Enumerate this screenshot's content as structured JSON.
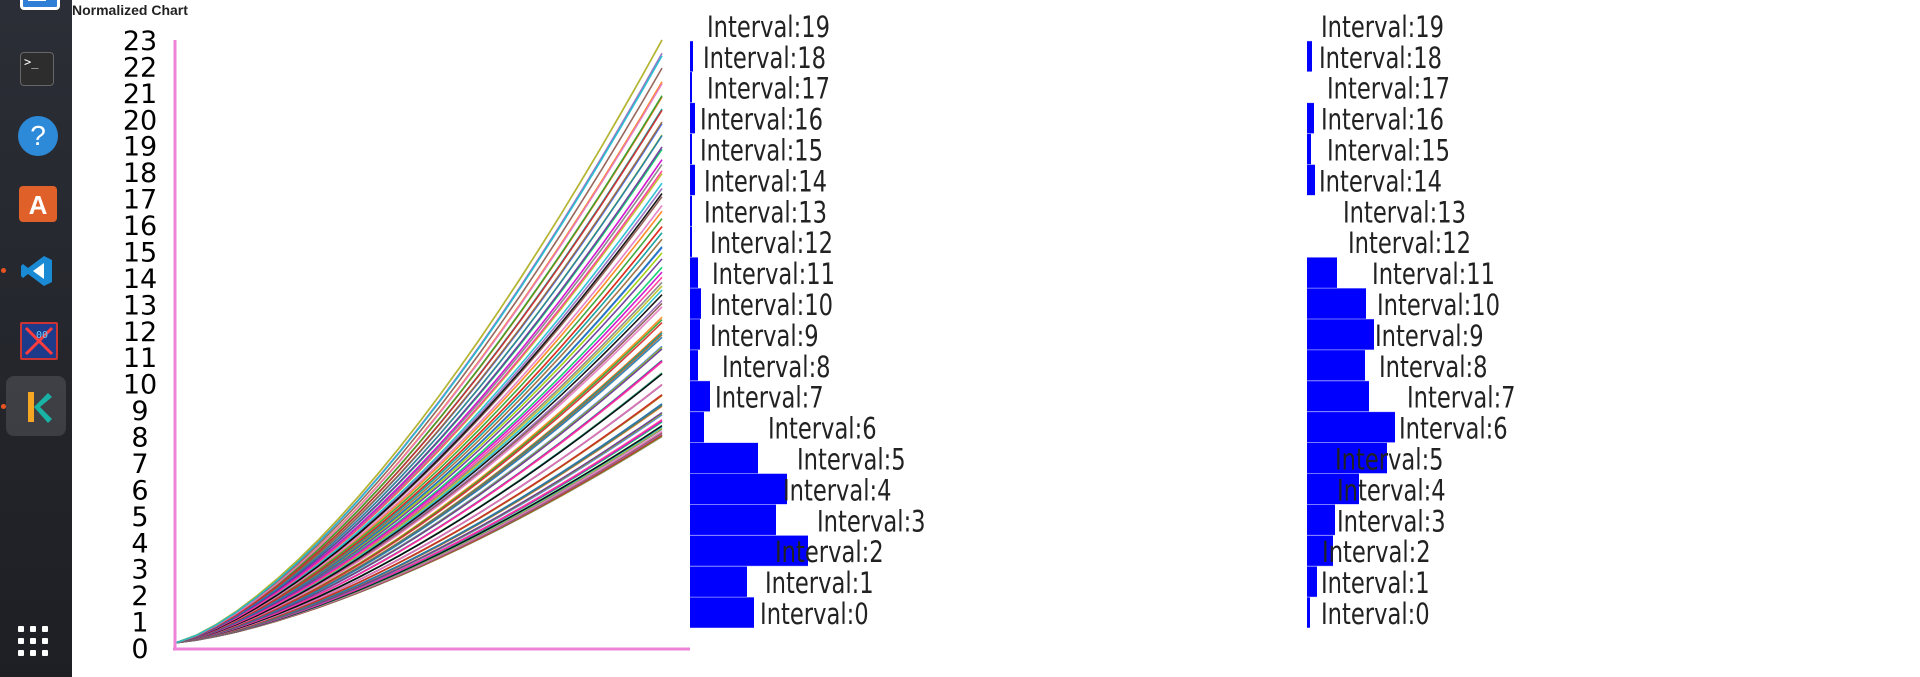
{
  "window": {
    "title": "Normalized Chart"
  },
  "dock": {
    "items": [
      {
        "name": "text-editor",
        "icon": "document-icon",
        "active": false,
        "running": false
      },
      {
        "name": "terminal",
        "icon": "terminal-icon",
        "label": ">_",
        "active": false,
        "running": false
      },
      {
        "name": "help",
        "icon": "help-icon",
        "label": "?",
        "active": false,
        "running": false
      },
      {
        "name": "app-center",
        "icon": "store-icon",
        "label": "A",
        "active": false,
        "running": false
      },
      {
        "name": "vscode",
        "icon": "vscode-icon",
        "active": false,
        "running": true
      },
      {
        "name": "hex-viewer",
        "icon": "hex-viewer-icon",
        "active": false,
        "running": false
      },
      {
        "name": "gitkraken",
        "icon": "gitkraken-icon",
        "active": true,
        "running": true
      }
    ],
    "show_apps_icon": "grid-icon"
  },
  "colors": {
    "axis": "#ee82d8",
    "bars": "#0000ff",
    "dock_bg": "#2a2c33",
    "accent": "#e95420"
  },
  "chart_data": [
    {
      "type": "line",
      "title": "",
      "xlabel": "",
      "ylabel": "",
      "ylim": [
        0,
        23
      ],
      "yticks": [
        "0",
        "1",
        "2",
        "3",
        "4",
        "5",
        "6",
        "7",
        "8",
        "9",
        "10",
        "11",
        "12",
        "13",
        "14",
        "15",
        "16",
        "17",
        "18",
        "19",
        "20",
        "21",
        "22",
        "23"
      ],
      "grid": false,
      "legend": "none",
      "series_count": 90,
      "description_of_series": "many monotonically increasing curves all starting near 0.2 and diverging to final values between about 8 and 23",
      "final_values_min": 8.0,
      "final_values_max": 23.0,
      "start_value": 0.2
    },
    {
      "type": "bar",
      "orientation": "horizontal",
      "categories": [
        "Interval:0",
        "Interval:1",
        "Interval:2",
        "Interval:3",
        "Interval:4",
        "Interval:5",
        "Interval:6",
        "Interval:7",
        "Interval:8",
        "Interval:9",
        "Interval:10",
        "Interval:11",
        "Interval:12",
        "Interval:13",
        "Interval:14",
        "Interval:15",
        "Interval:16",
        "Interval:17",
        "Interval:18",
        "Interval:19"
      ],
      "values": [
        64,
        57,
        118,
        86,
        97,
        68,
        14,
        20,
        8,
        10,
        11,
        8,
        2,
        2,
        5,
        2,
        5,
        2,
        3,
        0
      ],
      "color": "#0000ff"
    },
    {
      "type": "bar",
      "orientation": "horizontal",
      "categories": [
        "Interval:0",
        "Interval:1",
        "Interval:2",
        "Interval:3",
        "Interval:4",
        "Interval:5",
        "Interval:6",
        "Interval:7",
        "Interval:8",
        "Interval:9",
        "Interval:10",
        "Interval:11",
        "Interval:12",
        "Interval:13",
        "Interval:14",
        "Interval:15",
        "Interval:16",
        "Interval:17",
        "Interval:18",
        "Interval:19"
      ],
      "values": [
        3,
        10,
        26,
        28,
        52,
        80,
        88,
        62,
        58,
        67,
        59,
        30,
        0,
        0,
        8,
        4,
        7,
        0,
        5,
        0
      ],
      "color": "#0000ff"
    }
  ]
}
